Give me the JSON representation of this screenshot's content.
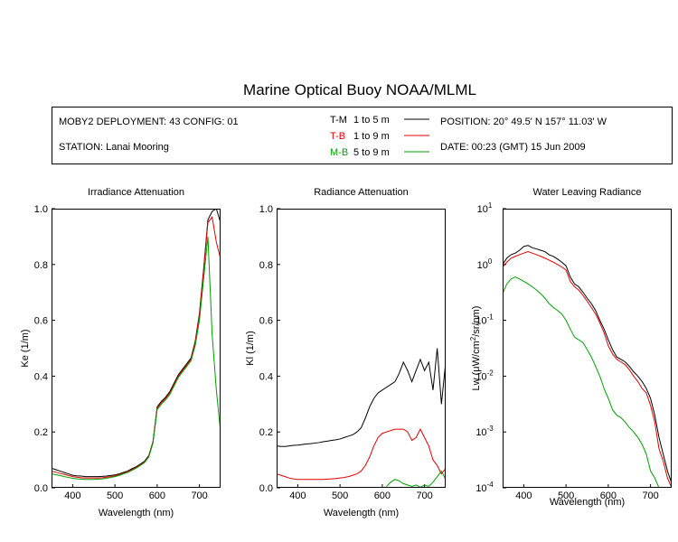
{
  "title": "Marine Optical Buoy NOAA/MLML",
  "info": {
    "deployment": "MOBY2 DEPLOYMENT: 43 CONFIG: 01",
    "station": "STATION: Lanai Mooring",
    "position": "POSITION: 20° 49.5' N   157° 11.03' W",
    "date": "DATE: 00:23 (GMT) 15 Jun 2009"
  },
  "legend": [
    {
      "name": "T-M",
      "range": "1 to 5  m",
      "color": "#000000"
    },
    {
      "name": "T-B",
      "range": "1 to 9  m",
      "color": "#e00000"
    },
    {
      "name": "M-B",
      "range": "5 to 9  m",
      "color": "#00a000"
    }
  ],
  "chart_data": [
    {
      "type": "line",
      "title": "Irradiance Attenuation",
      "xlabel": "Wavelength (nm)",
      "ylabel": [
        "Ke  (1/m)"
      ],
      "x": [
        350,
        360,
        370,
        380,
        390,
        400,
        410,
        420,
        430,
        440,
        450,
        460,
        470,
        480,
        490,
        500,
        510,
        520,
        530,
        540,
        550,
        560,
        570,
        580,
        590,
        600,
        610,
        620,
        630,
        640,
        650,
        660,
        670,
        680,
        690,
        700,
        710,
        720,
        730,
        740,
        750
      ],
      "xlim": [
        350,
        750
      ],
      "xticks": [
        400,
        500,
        600,
        700
      ],
      "ylim": [
        0,
        1
      ],
      "yticks": [
        {
          "value": 0,
          "label": "0.0"
        },
        0.2,
        0.4,
        0.6,
        0.8,
        {
          "value": 1,
          "label": "1.0"
        }
      ],
      "series": [
        {
          "color": "#000000",
          "values": [
            0.07,
            0.065,
            0.06,
            0.055,
            0.05,
            0.045,
            0.043,
            0.042,
            0.04,
            0.04,
            0.04,
            0.04,
            0.041,
            0.042,
            0.044,
            0.046,
            0.05,
            0.055,
            0.06,
            0.068,
            0.075,
            0.085,
            0.095,
            0.115,
            0.165,
            0.29,
            0.31,
            0.325,
            0.345,
            0.375,
            0.405,
            0.425,
            0.445,
            0.465,
            0.525,
            0.625,
            0.785,
            0.96,
            0.99,
            1.0,
            0.95
          ]
        },
        {
          "color": "#e00000",
          "values": [
            0.06,
            0.056,
            0.052,
            0.048,
            0.044,
            0.04,
            0.038,
            0.036,
            0.035,
            0.035,
            0.035,
            0.035,
            0.036,
            0.038,
            0.04,
            0.043,
            0.047,
            0.052,
            0.058,
            0.065,
            0.072,
            0.082,
            0.092,
            0.112,
            0.162,
            0.285,
            0.305,
            0.32,
            0.34,
            0.37,
            0.4,
            0.42,
            0.44,
            0.46,
            0.52,
            0.62,
            0.78,
            0.95,
            0.97,
            0.88,
            0.82
          ]
        },
        {
          "color": "#00a000",
          "values": [
            0.05,
            0.047,
            0.044,
            0.04,
            0.037,
            0.034,
            0.032,
            0.031,
            0.03,
            0.03,
            0.03,
            0.031,
            0.032,
            0.034,
            0.037,
            0.04,
            0.044,
            0.05,
            0.055,
            0.062,
            0.07,
            0.08,
            0.09,
            0.11,
            0.16,
            0.28,
            0.3,
            0.315,
            0.335,
            0.365,
            0.395,
            0.415,
            0.435,
            0.455,
            0.51,
            0.6,
            0.75,
            0.9,
            0.55,
            0.35,
            0.2
          ]
        }
      ]
    },
    {
      "type": "line",
      "title": "Radiance Attenuation",
      "xlabel": "Wavelength (nm)",
      "ylabel": [
        "Kl  (1/m)"
      ],
      "x": [
        350,
        360,
        370,
        380,
        390,
        400,
        410,
        420,
        430,
        440,
        450,
        460,
        470,
        480,
        490,
        500,
        510,
        520,
        530,
        540,
        550,
        560,
        570,
        580,
        590,
        600,
        610,
        620,
        630,
        640,
        650,
        660,
        670,
        680,
        690,
        700,
        710,
        720,
        730,
        740,
        750
      ],
      "xlim": [
        350,
        750
      ],
      "xticks": [
        400,
        500,
        600,
        700
      ],
      "ylim": [
        0,
        1
      ],
      "yticks": [
        {
          "value": 0,
          "label": "0.0"
        },
        0.2,
        0.4,
        0.6,
        0.8,
        {
          "value": 1,
          "label": "1.0"
        }
      ],
      "series": [
        {
          "color": "#000000",
          "values": [
            0.15,
            0.148,
            0.148,
            0.15,
            0.152,
            0.153,
            0.155,
            0.157,
            0.158,
            0.16,
            0.162,
            0.165,
            0.167,
            0.17,
            0.172,
            0.175,
            0.18,
            0.185,
            0.19,
            0.2,
            0.215,
            0.25,
            0.29,
            0.32,
            0.34,
            0.35,
            0.36,
            0.37,
            0.38,
            0.41,
            0.45,
            0.42,
            0.38,
            0.42,
            0.46,
            0.42,
            0.45,
            0.35,
            0.5,
            0.3,
            0.45
          ]
        },
        {
          "color": "#e00000",
          "values": [
            0.05,
            0.045,
            0.04,
            0.035,
            0.032,
            0.03,
            0.03,
            0.03,
            0.03,
            0.03,
            0.03,
            0.03,
            0.031,
            0.032,
            0.033,
            0.035,
            0.037,
            0.04,
            0.045,
            0.05,
            0.06,
            0.08,
            0.11,
            0.15,
            0.18,
            0.195,
            0.2,
            0.205,
            0.21,
            0.21,
            0.21,
            0.2,
            0.17,
            0.18,
            0.21,
            0.18,
            0.15,
            0.1,
            0.08,
            0.05,
            0.07
          ]
        },
        {
          "color": "#00a000",
          "values": [
            null,
            null,
            null,
            null,
            null,
            null,
            null,
            null,
            null,
            null,
            null,
            null,
            null,
            null,
            null,
            null,
            null,
            null,
            null,
            null,
            null,
            null,
            null,
            null,
            null,
            null,
            0.005,
            0.02,
            0.03,
            0.025,
            0.015,
            0.01,
            0.005,
            0.01,
            0.002,
            0.01,
            0.005,
            0.02,
            0.04,
            0.06,
            0.03
          ]
        }
      ]
    },
    {
      "type": "line",
      "title": "Water Leaving Radiance",
      "xlabel": "Wavelength (nm)",
      "ylabel": [
        "Lw  (μW/cm",
        "2",
        "/sr/nm)"
      ],
      "x": [
        350,
        360,
        370,
        380,
        390,
        400,
        410,
        420,
        430,
        440,
        450,
        460,
        470,
        480,
        490,
        500,
        510,
        520,
        530,
        540,
        550,
        560,
        570,
        580,
        590,
        600,
        610,
        620,
        630,
        640,
        650,
        660,
        670,
        680,
        690,
        700,
        710,
        720,
        730,
        740,
        750
      ],
      "xlim": [
        350,
        750
      ],
      "xticks": [
        400,
        500,
        600,
        700
      ],
      "yscale": "log",
      "ylim": [
        0.0001,
        10
      ],
      "yticks": [
        {
          "value": 10,
          "label": "10",
          "sup": "1"
        },
        {
          "value": 1,
          "label": "10",
          "sup": "0"
        },
        {
          "value": 0.1,
          "label": "10",
          "sup": "-1"
        },
        {
          "value": 0.01,
          "label": "10",
          "sup": "-2"
        },
        {
          "value": 0.001,
          "label": "10",
          "sup": "-3"
        },
        {
          "value": 0.0001,
          "label": "10",
          "sup": "-4"
        }
      ],
      "series": [
        {
          "color": "#000000",
          "values": [
            1.0,
            1.3,
            1.5,
            1.6,
            1.8,
            2.1,
            2.2,
            2.0,
            1.9,
            1.8,
            1.7,
            1.5,
            1.4,
            1.25,
            1.1,
            0.95,
            0.6,
            0.45,
            0.4,
            0.32,
            0.25,
            0.2,
            0.15,
            0.1,
            0.07,
            0.045,
            0.03,
            0.022,
            0.02,
            0.018,
            0.015,
            0.012,
            0.01,
            0.008,
            0.006,
            0.004,
            0.002,
            0.0008,
            0.0004,
            0.0002,
            0.00012
          ]
        },
        {
          "color": "#e00000",
          "values": [
            0.9,
            1.1,
            1.3,
            1.4,
            1.5,
            1.6,
            1.7,
            1.6,
            1.5,
            1.4,
            1.3,
            1.2,
            1.1,
            1.0,
            0.9,
            0.8,
            0.5,
            0.4,
            0.35,
            0.28,
            0.22,
            0.17,
            0.13,
            0.09,
            0.06,
            0.035,
            0.025,
            0.02,
            0.018,
            0.016,
            0.013,
            0.01,
            0.008,
            0.006,
            0.005,
            0.003,
            0.0015,
            0.0005,
            0.0003,
            0.00015,
            0.0001
          ]
        },
        {
          "color": "#00a000",
          "values": [
            0.3,
            0.45,
            0.55,
            0.6,
            0.55,
            0.5,
            0.45,
            0.4,
            0.35,
            0.3,
            0.25,
            0.2,
            0.17,
            0.15,
            0.13,
            0.1,
            0.07,
            0.05,
            0.045,
            0.04,
            0.03,
            0.022,
            0.015,
            0.01,
            0.006,
            0.004,
            0.0025,
            0.002,
            0.0018,
            0.0015,
            0.0012,
            0.001,
            0.0008,
            0.0006,
            0.0004,
            0.0002,
            0.00015,
            0.0001,
            null,
            null,
            null
          ]
        }
      ]
    }
  ]
}
